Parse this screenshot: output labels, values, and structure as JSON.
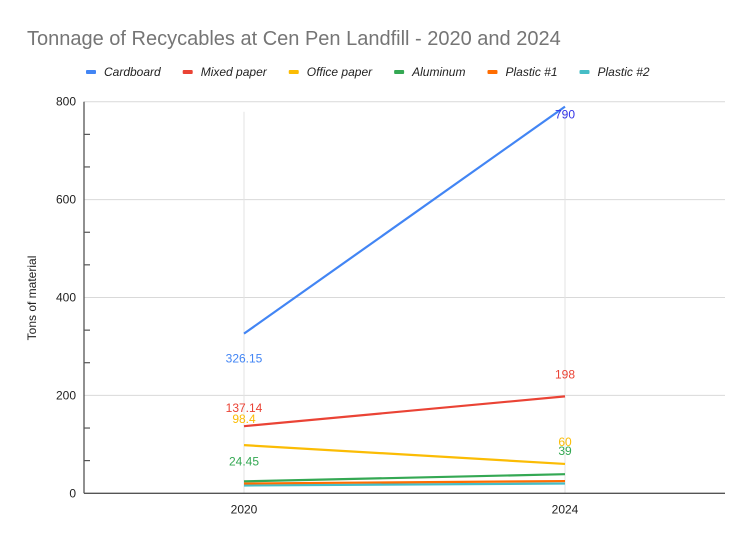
{
  "chart_data": {
    "type": "line",
    "title": "Tonnage of Recycables at Cen Pen Landfill - 2020 and 2024",
    "xlabel": "",
    "ylabel": "Tons of material",
    "categories": [
      "2020",
      "2024"
    ],
    "ylim": [
      0,
      800
    ],
    "y_ticks": [
      "0",
      "200",
      "400",
      "600",
      "800"
    ],
    "y_tick_values": [
      0,
      200,
      400,
      600,
      800
    ],
    "y_minor_step": 66.67,
    "grid": true,
    "legend_position": "top",
    "series": [
      {
        "name": "Cardboard",
        "color": "#4285f4",
        "values": [
          326.15,
          790
        ],
        "labels": [
          "326.15",
          "790"
        ],
        "label_colors": [
          "#4285f4",
          "#3333e6"
        ]
      },
      {
        "name": "Mixed paper",
        "color": "#ea4335",
        "values": [
          137.14,
          198
        ],
        "labels": [
          "137.14",
          "198"
        ],
        "label_colors": [
          "#ea4335",
          "#ea4335"
        ]
      },
      {
        "name": "Office paper",
        "color": "#fbbc04",
        "values": [
          98.4,
          60
        ],
        "labels": [
          "98.4",
          "60"
        ],
        "label_colors": [
          "#fbbc04",
          "#fbbc04"
        ]
      },
      {
        "name": "Aluminum",
        "color": "#34a853",
        "values": [
          24.45,
          39
        ],
        "labels": [
          "24.45",
          "39"
        ],
        "label_colors": [
          "#34a853",
          "#34a853"
        ]
      },
      {
        "name": "Plastic #1",
        "color": "#ff6d01",
        "values": [
          20,
          25
        ],
        "labels": [
          "",
          ""
        ],
        "label_colors": [
          "#ff6d01",
          "#ff6d01"
        ]
      },
      {
        "name": "Plastic #2",
        "color": "#46bdc6",
        "values": [
          16,
          20
        ],
        "labels": [
          "",
          ""
        ],
        "label_colors": [
          "#46bdc6",
          "#46bdc6"
        ]
      }
    ]
  }
}
